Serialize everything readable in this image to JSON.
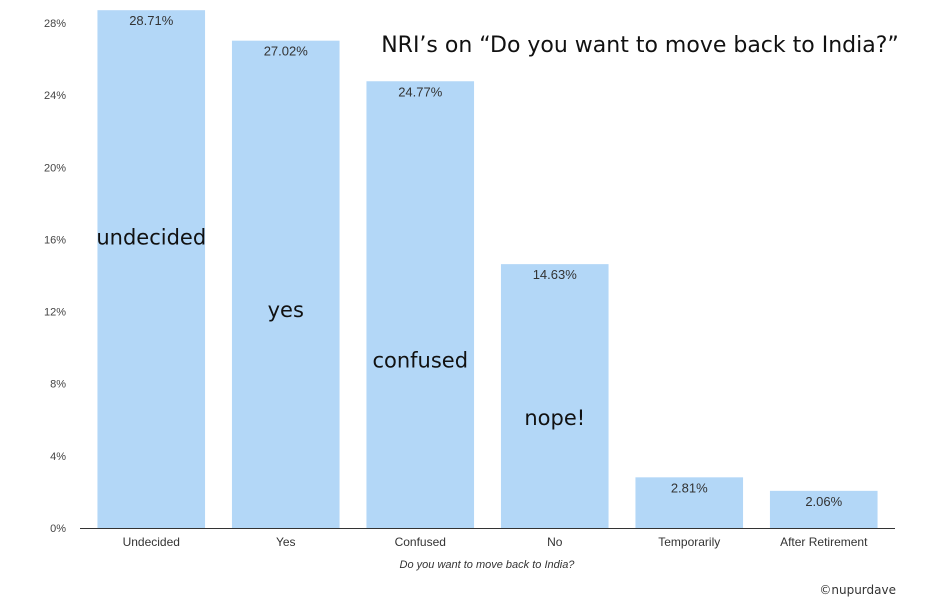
{
  "chart_data": {
    "type": "bar",
    "title": "NRI’s on “Do you want to move back to India?”",
    "xlabel": "Do you want to move back to India?",
    "ylabel": "",
    "ylim": [
      0,
      28
    ],
    "yticks": [
      0,
      4,
      8,
      12,
      16,
      20,
      24,
      28
    ],
    "ytick_suffix": "%",
    "categories": [
      "Undecided",
      "Yes",
      "Confused",
      "No",
      "Temporarily",
      "After Retirement"
    ],
    "values": [
      28.71,
      27.02,
      24.77,
      14.63,
      2.81,
      2.06
    ],
    "value_labels": [
      "28.71%",
      "27.02%",
      "24.77%",
      "14.63%",
      "2.81%",
      "2.06%"
    ],
    "annotations": [
      {
        "text": "undecided",
        "bar": 0,
        "y": 16.1
      },
      {
        "text": "yes",
        "bar": 1,
        "y": 12.1
      },
      {
        "text": "confused",
        "bar": 2,
        "y": 9.3
      },
      {
        "text": "nope!",
        "bar": 3,
        "y": 6.1
      }
    ],
    "bar_color": "#b3d7f7",
    "grid": false
  },
  "credit": "©nupurdave"
}
